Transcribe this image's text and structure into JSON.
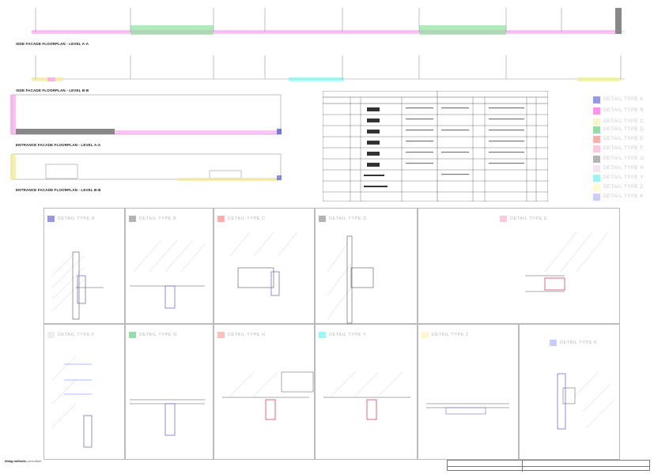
{
  "plans": [
    {
      "label": "SIDE FACADE FLOORPLAN - LEVEL A-A"
    },
    {
      "label": "SIDE FACADE FLOORPLAN - LEVEL B-B"
    },
    {
      "label": "ENTRANCE FACADE FLOORPLAN - LEVEL A-A"
    },
    {
      "label": "ENTRANCE FACADE FLOORPLAN - LEVEL B-B"
    }
  ],
  "legend": [
    {
      "label": "DETAIL TYPE A",
      "color": "#3b49d6"
    },
    {
      "label": "DETAIL TYPE B",
      "color": "#ff3bd8"
    },
    {
      "label": "DETAIL TYPE C",
      "color": "#f2ec9a"
    },
    {
      "label": "DETAIL TYPE D",
      "color": "#40c060"
    },
    {
      "label": "DETAIL TYPE E",
      "color": "#ff6a6a"
    },
    {
      "label": "DETAIL TYPE F",
      "color": "#ff9ac8"
    },
    {
      "label": "DETAIL TYPE G",
      "color": "#777777"
    },
    {
      "label": "DETAIL TYPE H",
      "color": "#e8d0e8"
    },
    {
      "label": "DETAIL TYPE Y",
      "color": "#40f0f0"
    },
    {
      "label": "DETAIL TYPE Z",
      "color": "#fff5b0"
    },
    {
      "label": "DETAIL TYPE K",
      "color": "#9aa4ff"
    }
  ],
  "details": [
    {
      "title": "DETAIL TYPE A",
      "color": "#3b49d6"
    },
    {
      "title": "DETAIL TYPE B",
      "color": "#777777"
    },
    {
      "title": "DETAIL TYPE C",
      "color": "#ff6a6a"
    },
    {
      "title": "DETAIL TYPE D",
      "color": "#777777"
    },
    {
      "title": "DETAIL TYPE E",
      "color": "#ff9ac8"
    },
    {
      "title": "DETAIL TYPE F",
      "color": "#e0e0e0"
    },
    {
      "title": "DETAIL TYPE G",
      "color": "#40c060"
    },
    {
      "title": "DETAIL TYPE H",
      "color": "#ff8a8a"
    },
    {
      "title": "DETAIL TYPE Y",
      "color": "#40f0f0"
    },
    {
      "title": "DETAIL TYPE Z",
      "color": "#fff0a0"
    },
    {
      "title": "DETAIL TYPE K",
      "color": "#9aa4ff"
    }
  ],
  "footer": {
    "firm": "kitaig.mitholis",
    "line1": "consultant"
  }
}
